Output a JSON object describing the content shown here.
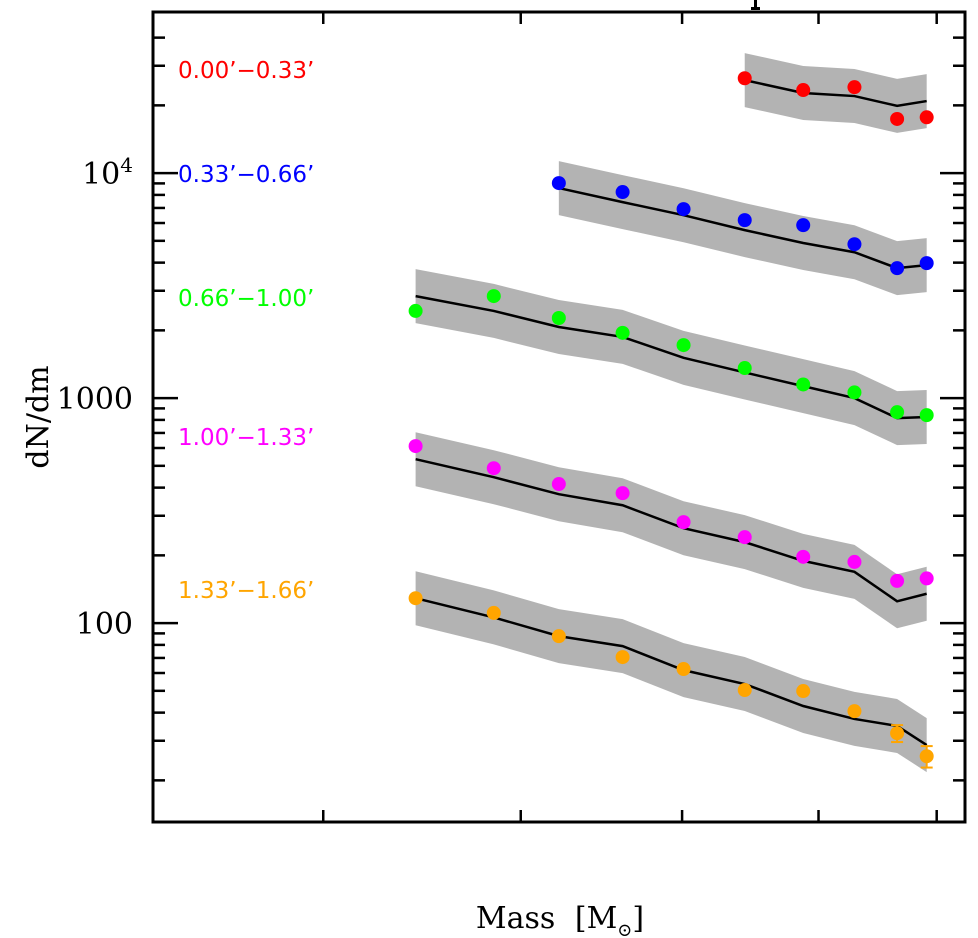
{
  "chart_data": {
    "type": "line",
    "title": "",
    "xlabel": "Mass [M⊙]",
    "xlabel_main": "Mass",
    "xlabel_unit": "M",
    "xlabel_subscript": "⊙",
    "ylabel": "dN/dm",
    "xscale": "log",
    "yscale": "log",
    "xlim": [
      0.33,
      0.826
    ],
    "ylim": [
      13.06,
      52000
    ],
    "x_ticks": [
      0.4,
      0.5,
      0.6,
      0.7,
      0.8
    ],
    "x_tick_labels_visible": false,
    "y_major_ticks": [
      {
        "value": 100,
        "label": "100"
      },
      {
        "value": 1000,
        "label": "1000"
      },
      {
        "value": 10000,
        "label": "10",
        "sup": "4"
      }
    ],
    "y_minor_ticks": [
      20,
      30,
      40,
      50,
      60,
      70,
      80,
      90,
      200,
      300,
      400,
      500,
      600,
      700,
      800,
      900,
      2000,
      3000,
      4000,
      5000,
      6000,
      7000,
      8000,
      9000,
      20000,
      30000,
      40000
    ],
    "grid": false,
    "band_dex": 0.12,
    "band_color": "#b3b3b3",
    "model_line_color": "#000000",
    "series": [
      {
        "name": "0.00’−0.33’",
        "color": "#ff0000",
        "x": [
          0.644,
          0.688,
          0.729,
          0.765,
          0.791
        ],
        "observed": [
          26400,
          23400,
          24100,
          17400,
          17700
        ],
        "model": [
          25900,
          22700,
          22000,
          19900,
          20900
        ]
      },
      {
        "name": "0.33’−0.66’",
        "color": "#0000ff",
        "x": [
          0.522,
          0.561,
          0.601,
          0.644,
          0.688,
          0.729,
          0.765,
          0.791
        ],
        "observed": [
          9030,
          8240,
          6920,
          6180,
          5870,
          4830,
          3780,
          3980
        ],
        "model": [
          8580,
          7430,
          6500,
          5580,
          4890,
          4450,
          3780,
          3900
        ]
      },
      {
        "name": "0.66’−1.00’",
        "color": "#00ff00",
        "x": [
          0.444,
          0.485,
          0.522,
          0.561,
          0.601,
          0.644,
          0.688,
          0.729,
          0.765,
          0.791
        ],
        "observed": [
          2440,
          2840,
          2270,
          1950,
          1720,
          1360,
          1150,
          1060,
          866,
          840
        ],
        "model": [
          2840,
          2440,
          2070,
          1870,
          1510,
          1300,
          1130,
          1000,
          815,
          824
        ]
      },
      {
        "name": "1.00’−1.33’",
        "color": "#ff00ff",
        "x": [
          0.444,
          0.485,
          0.522,
          0.561,
          0.601,
          0.644,
          0.688,
          0.729,
          0.765,
          0.791
        ],
        "observed": [
          612,
          488,
          415,
          378,
          281,
          241,
          197,
          187,
          154,
          158
        ],
        "model": [
          535,
          445,
          374,
          334,
          264,
          229,
          189,
          169,
          125,
          135
        ]
      },
      {
        "name": "1.33’−1.66’",
        "color": "#ffa500",
        "x": [
          0.444,
          0.485,
          0.522,
          0.561,
          0.601,
          0.644,
          0.688,
          0.729,
          0.765,
          0.791
        ],
        "observed": [
          129,
          111,
          87.5,
          70.6,
          62.5,
          50.4,
          49.9,
          40.6,
          32.4,
          25.6
        ],
        "observed_err": [
          0,
          0,
          0,
          0,
          0,
          0,
          0,
          0,
          2.8,
          2.8
        ],
        "model": [
          129,
          106,
          87.5,
          79,
          61.8,
          53.6,
          42.8,
          37.5,
          34.9,
          28.7
        ]
      }
    ]
  }
}
